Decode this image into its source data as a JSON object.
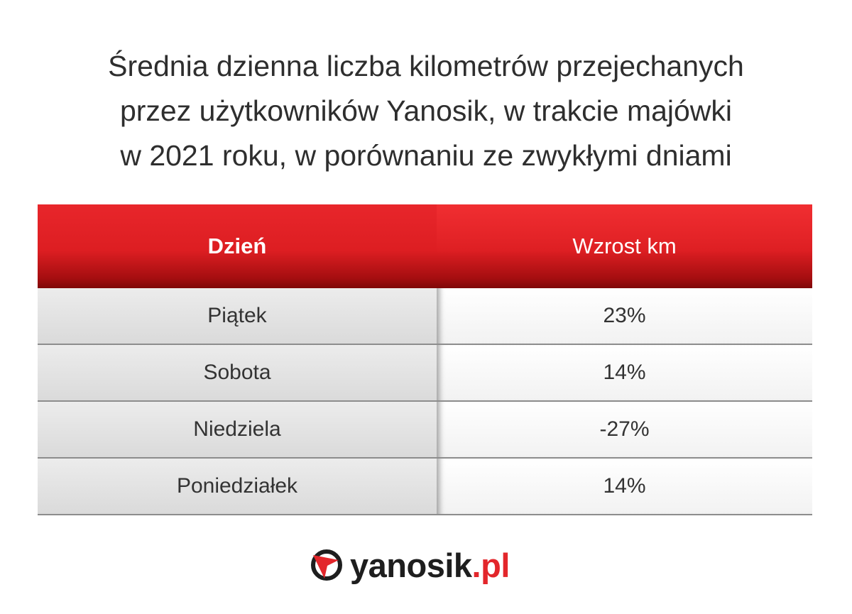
{
  "chart_data": {
    "type": "table",
    "title_lines": [
      "Średnia dzienna liczba kilometrów przejechanych",
      "przez użytkowników Yanosik, w trakcie majówki",
      "w 2021 roku, w porównaniu ze zwykłymi dniami"
    ],
    "columns": [
      "Dzień",
      "Wzrost km"
    ],
    "rows": [
      {
        "day": "Piątek",
        "value": "23%"
      },
      {
        "day": "Sobota",
        "value": "14%"
      },
      {
        "day": "Niedziela",
        "value": "-27%"
      },
      {
        "day": "Poniedziałek",
        "value": "14%"
      }
    ],
    "header_color": "#e3262b"
  },
  "logo": {
    "name": "yanosik",
    "domain": ".pl",
    "icon": "yanosik-logo-icon",
    "color": "#e3262b"
  }
}
